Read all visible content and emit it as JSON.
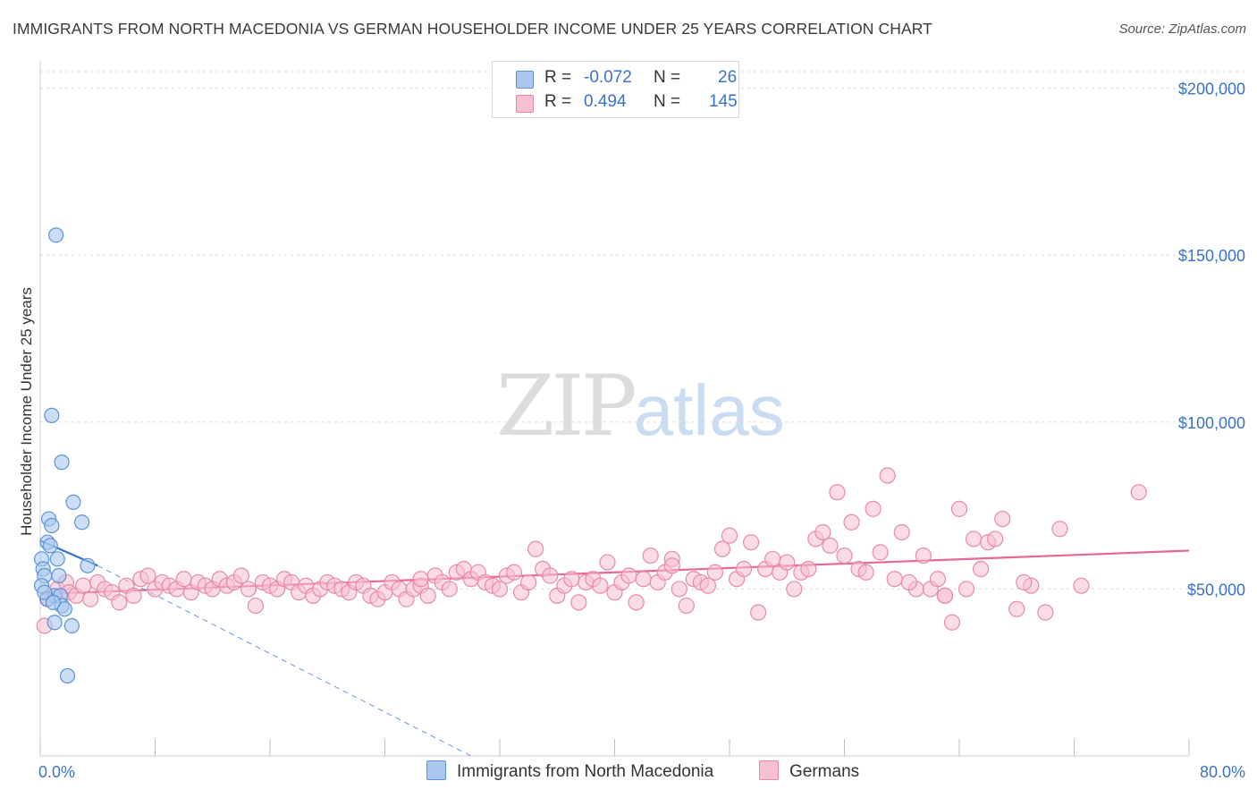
{
  "title": "IMMIGRANTS FROM NORTH MACEDONIA VS GERMAN HOUSEHOLDER INCOME UNDER 25 YEARS CORRELATION CHART",
  "source": "Source: ZipAtlas.com",
  "watermark": {
    "zip": "ZIP",
    "atlas": "atlas"
  },
  "legend": {
    "r_label": "R =",
    "n_label": "N =",
    "rows": [
      {
        "r": "-0.072",
        "n": "26"
      },
      {
        "r": "0.494",
        "n": "145"
      }
    ]
  },
  "colors": {
    "blue_fill": "#aac8ef",
    "blue_stroke": "#5b93d6",
    "blue_line": "#3574d4",
    "pink_fill": "#f7c0d1",
    "pink_stroke": "#e68aa8",
    "pink_line": "#e7679a",
    "axis_text": "#3a73c6",
    "grid": "#d9d9d9"
  },
  "chart_data": {
    "type": "scatter",
    "title": "IMMIGRANTS FROM NORTH MACEDONIA VS GERMAN HOUSEHOLDER INCOME UNDER 25 YEARS CORRELATION CHART",
    "xlabel": "",
    "ylabel": "Householder Income Under 25 years",
    "xlim": [
      0,
      80
    ],
    "ylim": [
      0,
      205000
    ],
    "x_tick_labels": [
      "0.0%",
      "80.0%"
    ],
    "y_ticks": [
      {
        "value": 50000,
        "label": "$50,000"
      },
      {
        "value": 100000,
        "label": "$100,000"
      },
      {
        "value": 150000,
        "label": "$150,000"
      },
      {
        "value": 200000,
        "label": "$200,000"
      }
    ],
    "series": [
      {
        "name": "Immigrants from North Macedonia",
        "color": "blue",
        "r": -0.072,
        "n": 26,
        "trend": {
          "x": [
            0,
            4
          ],
          "y": [
            64500,
            57000
          ],
          "dashed_extension_to": [
            30,
            0
          ]
        },
        "points": [
          [
            1.1,
            156000
          ],
          [
            0.8,
            102000
          ],
          [
            1.5,
            88000
          ],
          [
            2.3,
            76000
          ],
          [
            2.9,
            70000
          ],
          [
            0.6,
            71000
          ],
          [
            0.8,
            69000
          ],
          [
            0.5,
            64000
          ],
          [
            0.7,
            63000
          ],
          [
            0.1,
            59000
          ],
          [
            1.2,
            59000
          ],
          [
            0.2,
            56000
          ],
          [
            0.3,
            54000
          ],
          [
            1.3,
            54000
          ],
          [
            3.3,
            57000
          ],
          [
            0.1,
            51000
          ],
          [
            1.0,
            48000
          ],
          [
            1.4,
            48000
          ],
          [
            0.5,
            47000
          ],
          [
            1.5,
            45000
          ],
          [
            1.7,
            44000
          ],
          [
            1.0,
            40000
          ],
          [
            2.2,
            39000
          ],
          [
            1.9,
            24000
          ],
          [
            0.3,
            49000
          ],
          [
            0.9,
            46000
          ]
        ]
      },
      {
        "name": "Germans",
        "color": "pink",
        "r": 0.494,
        "n": 145,
        "trend": {
          "x": [
            0,
            80
          ],
          "y": [
            48500,
            61500
          ]
        },
        "points": [
          [
            0.3,
            39000
          ],
          [
            0.5,
            47000
          ],
          [
            1.2,
            50000
          ],
          [
            1.8,
            52000
          ],
          [
            2.0,
            49000
          ],
          [
            2.5,
            48000
          ],
          [
            3.0,
            51000
          ],
          [
            3.5,
            47000
          ],
          [
            4.0,
            52000
          ],
          [
            4.5,
            50000
          ],
          [
            5.0,
            49000
          ],
          [
            5.5,
            46000
          ],
          [
            6.0,
            51000
          ],
          [
            6.5,
            48000
          ],
          [
            7.0,
            53000
          ],
          [
            7.5,
            54000
          ],
          [
            8.0,
            50000
          ],
          [
            8.5,
            52000
          ],
          [
            9.0,
            51000
          ],
          [
            9.5,
            50000
          ],
          [
            10.0,
            53000
          ],
          [
            10.5,
            49000
          ],
          [
            11.0,
            52000
          ],
          [
            11.5,
            51000
          ],
          [
            12.0,
            50000
          ],
          [
            12.5,
            53000
          ],
          [
            13.0,
            51000
          ],
          [
            13.5,
            52000
          ],
          [
            14.0,
            54000
          ],
          [
            14.5,
            50000
          ],
          [
            15.0,
            45000
          ],
          [
            15.5,
            52000
          ],
          [
            16.0,
            51000
          ],
          [
            16.5,
            50000
          ],
          [
            17.0,
            53000
          ],
          [
            17.5,
            52000
          ],
          [
            18.0,
            49000
          ],
          [
            18.5,
            51000
          ],
          [
            19.0,
            48000
          ],
          [
            19.5,
            50000
          ],
          [
            20.0,
            52000
          ],
          [
            20.5,
            51000
          ],
          [
            21.0,
            50000
          ],
          [
            21.5,
            49000
          ],
          [
            22.0,
            52000
          ],
          [
            22.5,
            51000
          ],
          [
            23.0,
            48000
          ],
          [
            23.5,
            47000
          ],
          [
            24.0,
            49000
          ],
          [
            24.5,
            52000
          ],
          [
            25.0,
            50000
          ],
          [
            25.5,
            47000
          ],
          [
            26.0,
            50000
          ],
          [
            26.5,
            51000
          ],
          [
            27.0,
            48000
          ],
          [
            27.5,
            54000
          ],
          [
            28.0,
            52000
          ],
          [
            28.5,
            50000
          ],
          [
            29.0,
            55000
          ],
          [
            29.5,
            56000
          ],
          [
            30.0,
            53000
          ],
          [
            30.5,
            55000
          ],
          [
            31.0,
            52000
          ],
          [
            31.5,
            51000
          ],
          [
            32.0,
            50000
          ],
          [
            32.5,
            54000
          ],
          [
            33.0,
            55000
          ],
          [
            33.5,
            49000
          ],
          [
            34.0,
            52000
          ],
          [
            34.5,
            62000
          ],
          [
            35.0,
            56000
          ],
          [
            35.5,
            54000
          ],
          [
            36.0,
            48000
          ],
          [
            36.5,
            51000
          ],
          [
            37.0,
            53000
          ],
          [
            37.5,
            46000
          ],
          [
            38.0,
            52000
          ],
          [
            38.5,
            53000
          ],
          [
            39.0,
            51000
          ],
          [
            39.5,
            58000
          ],
          [
            40.0,
            49000
          ],
          [
            40.5,
            52000
          ],
          [
            41.0,
            54000
          ],
          [
            41.5,
            46000
          ],
          [
            42.0,
            53000
          ],
          [
            42.5,
            60000
          ],
          [
            43.0,
            52000
          ],
          [
            43.5,
            55000
          ],
          [
            44.0,
            59000
          ],
          [
            44.5,
            50000
          ],
          [
            45.0,
            45000
          ],
          [
            45.5,
            53000
          ],
          [
            46.0,
            52000
          ],
          [
            46.5,
            51000
          ],
          [
            47.0,
            55000
          ],
          [
            47.5,
            62000
          ],
          [
            48.0,
            66000
          ],
          [
            48.5,
            53000
          ],
          [
            49.0,
            56000
          ],
          [
            49.5,
            64000
          ],
          [
            50.0,
            43000
          ],
          [
            50.5,
            56000
          ],
          [
            51.0,
            59000
          ],
          [
            51.5,
            55000
          ],
          [
            52.0,
            58000
          ],
          [
            52.5,
            50000
          ],
          [
            53.0,
            55000
          ],
          [
            53.5,
            56000
          ],
          [
            54.0,
            65000
          ],
          [
            54.5,
            67000
          ],
          [
            55.0,
            63000
          ],
          [
            55.5,
            79000
          ],
          [
            56.0,
            60000
          ],
          [
            56.5,
            70000
          ],
          [
            57.0,
            56000
          ],
          [
            57.5,
            55000
          ],
          [
            58.0,
            74000
          ],
          [
            58.5,
            61000
          ],
          [
            59.0,
            84000
          ],
          [
            59.5,
            53000
          ],
          [
            60.0,
            67000
          ],
          [
            61.0,
            50000
          ],
          [
            61.5,
            60000
          ],
          [
            62.0,
            50000
          ],
          [
            62.5,
            53000
          ],
          [
            63.0,
            48000
          ],
          [
            63.5,
            40000
          ],
          [
            64.0,
            74000
          ],
          [
            64.5,
            50000
          ],
          [
            65.0,
            65000
          ],
          [
            65.5,
            56000
          ],
          [
            66.0,
            64000
          ],
          [
            66.5,
            65000
          ],
          [
            67.0,
            71000
          ],
          [
            68.0,
            44000
          ],
          [
            69.0,
            51000
          ],
          [
            70.0,
            43000
          ],
          [
            71.0,
            68000
          ],
          [
            72.5,
            51000
          ],
          [
            76.5,
            79000
          ],
          [
            68.5,
            52000
          ],
          [
            63.0,
            48000
          ],
          [
            60.5,
            52000
          ],
          [
            44.0,
            57000
          ],
          [
            26.5,
            53000
          ]
        ]
      }
    ]
  },
  "bottom_legend": {
    "blue_label": "Immigrants from North Macedonia",
    "pink_label": "Germans"
  }
}
